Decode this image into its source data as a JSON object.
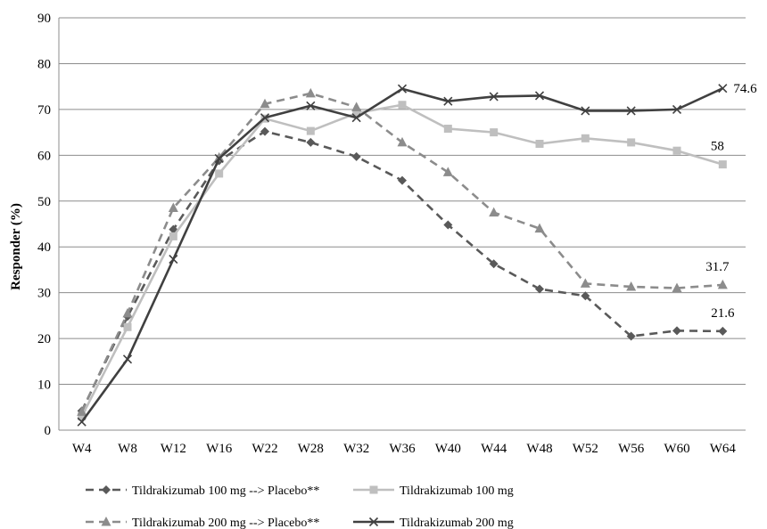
{
  "chart_data": {
    "type": "line",
    "title": "",
    "xlabel": "",
    "ylabel": "Responder (%)",
    "ylim": [
      0,
      90
    ],
    "yticks": [
      0,
      10,
      20,
      30,
      40,
      50,
      60,
      70,
      80,
      90
    ],
    "grid": true,
    "legend_position": "bottom",
    "categories": [
      "W4",
      "W8",
      "W12",
      "W16",
      "W22",
      "W28",
      "W32",
      "W36",
      "W40",
      "W44",
      "W48",
      "W52",
      "W56",
      "W60",
      "W64"
    ],
    "series": [
      {
        "name": "Tildrakizumab 100 mg --> Placebo**",
        "color": "#595959",
        "dash": "dashed",
        "marker": "diamond",
        "values": [
          4.2,
          24.8,
          43.8,
          58.8,
          65.2,
          62.8,
          59.7,
          54.5,
          44.8,
          36.3,
          30.8,
          29.3,
          20.5,
          21.7,
          21.6
        ],
        "end_label": "21.6"
      },
      {
        "name": "Tildrakizumab 100 mg",
        "color": "#bfbfbf",
        "dash": "solid",
        "marker": "square",
        "values": [
          3.0,
          22.5,
          42.3,
          56.0,
          68.0,
          65.3,
          69.2,
          71.0,
          65.8,
          65.0,
          62.5,
          63.7,
          62.8,
          61.0,
          58.0
        ],
        "end_label": "58"
      },
      {
        "name": "Tildrakizumab 200 mg --> Placebo**",
        "color": "#8c8c8c",
        "dash": "dashed",
        "marker": "triangle",
        "values": [
          4.0,
          25.5,
          48.5,
          59.5,
          71.2,
          73.5,
          70.5,
          62.8,
          56.3,
          47.5,
          44.0,
          32.0,
          31.3,
          31.0,
          31.7
        ],
        "end_label": "31.7"
      },
      {
        "name": "Tildrakizumab 200 mg",
        "color": "#404040",
        "dash": "solid",
        "marker": "x",
        "values": [
          1.8,
          15.5,
          37.3,
          59.3,
          68.2,
          70.8,
          68.2,
          74.5,
          71.8,
          72.8,
          73.0,
          69.7,
          69.7,
          70.0,
          74.6
        ],
        "end_label": "74.6"
      }
    ]
  }
}
